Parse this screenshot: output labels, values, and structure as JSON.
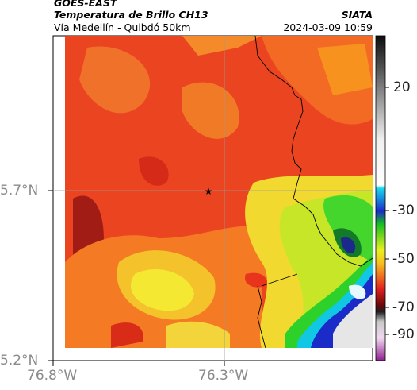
{
  "header": {
    "source": "GOES-EAST",
    "product": "Temperatura de Brillo CH13",
    "region": "Vía Medellín - Quibdó 50km",
    "agency": "SIATA",
    "datetime": "2024-03-09 10:59"
  },
  "axes": {
    "lat_labels": [
      "5.7°N",
      "5.2°N"
    ],
    "lon_labels": [
      "76.8°W",
      "76.3°W"
    ]
  },
  "colorbar": {
    "ticks": [
      "20",
      "-30",
      "-50",
      "-70",
      "-90"
    ]
  },
  "marker": {
    "symbol": "★",
    "name": "station-star"
  },
  "colors": {
    "red": "#e8391c",
    "orange": "#f57a22",
    "yellow": "#f2ee24",
    "green": "#2ed12a",
    "cyan": "#00d8f0",
    "blue": "#1a2bc8",
    "darkred": "#8c1010"
  }
}
